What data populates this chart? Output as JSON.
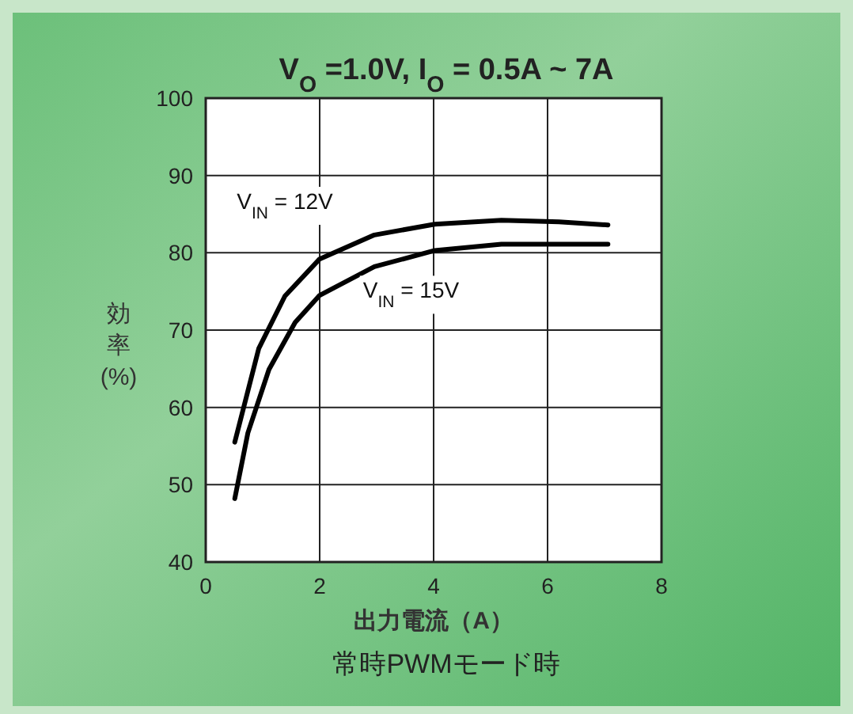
{
  "chart_data": {
    "type": "line",
    "title": "V$_{O}$ =1.0V,  I$_{O}$ = 0.5A ~ 7A",
    "xlabel": "出力電流（A）",
    "ylabel": "効率 (%)",
    "annotations": [
      "常時PWMモード時"
    ],
    "xlim": [
      0,
      8
    ],
    "xticks": [
      0,
      2,
      4,
      6,
      8
    ],
    "ylim": [
      40,
      100
    ],
    "yticks": [
      40,
      50,
      60,
      70,
      80,
      90,
      100
    ],
    "grid": true,
    "legend": false,
    "marker": "none",
    "line_style": "solid",
    "series": [
      {
        "name": "V$_{IN}$ = 12V",
        "color": "#000000",
        "x": [
          0.51,
          0.93,
          1.39,
          2.0,
          2.96,
          4.02,
          5.19,
          6.2,
          7.06
        ],
        "values": [
          55.5,
          67.6,
          74.4,
          79.2,
          82.3,
          83.7,
          84.2,
          84.0,
          83.6
        ]
      },
      {
        "name": "V$_{IN}$ = 15V",
        "color": "#000000",
        "x": [
          0.51,
          0.74,
          1.11,
          1.57,
          2.0,
          2.96,
          4.02,
          5.19,
          7.06
        ],
        "values": [
          48.2,
          56.7,
          64.9,
          71.0,
          74.5,
          78.2,
          80.3,
          81.1,
          81.1
        ]
      }
    ]
  }
}
